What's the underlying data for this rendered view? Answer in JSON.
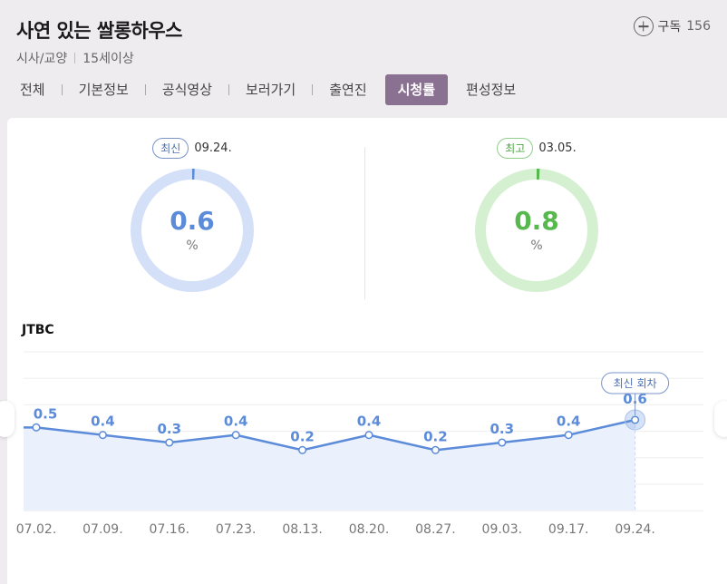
{
  "header": {
    "title": "사연 있는 쌀롱하우스",
    "genre": "시사/교양",
    "rating": "15세이상",
    "subscribe_label": "구독",
    "subscribe_count": "156"
  },
  "tabs": [
    {
      "label": "전체"
    },
    {
      "label": "기본정보"
    },
    {
      "label": "공식영상"
    },
    {
      "label": "보러가기"
    },
    {
      "label": "출연진"
    },
    {
      "label": "시청률"
    },
    {
      "label": "편성정보"
    }
  ],
  "stats": {
    "latest": {
      "badge": "최신",
      "date": "09.24.",
      "value": "0.6",
      "unit": "%",
      "fraction": 0.006,
      "color": "#5b8bd9",
      "track": "#d3e0f7"
    },
    "best": {
      "badge": "최고",
      "date": "03.05.",
      "value": "0.8",
      "unit": "%",
      "fraction": 0.008,
      "color": "#57b94d",
      "track": "#d4f0d0"
    }
  },
  "channel": "JTBC",
  "chart_data": {
    "type": "line",
    "categories": [
      "07.02.",
      "07.09.",
      "07.16.",
      "07.23.",
      "08.13.",
      "08.20.",
      "08.27.",
      "09.03.",
      "09.17.",
      "09.24."
    ],
    "values": [
      0.5,
      0.4,
      0.3,
      0.4,
      0.2,
      0.4,
      0.2,
      0.3,
      0.4,
      0.6
    ],
    "labels": [
      "0.5",
      "0.4",
      "0.3",
      "0.4",
      "0.2",
      "0.4",
      "0.2",
      "0.3",
      "0.4",
      "0.6"
    ],
    "highlight_label": "최신 회차",
    "ylim": [
      -0.6,
      1.5
    ],
    "color": "#5b8bd9",
    "fill": "#eaf1fc",
    "grid": true
  }
}
